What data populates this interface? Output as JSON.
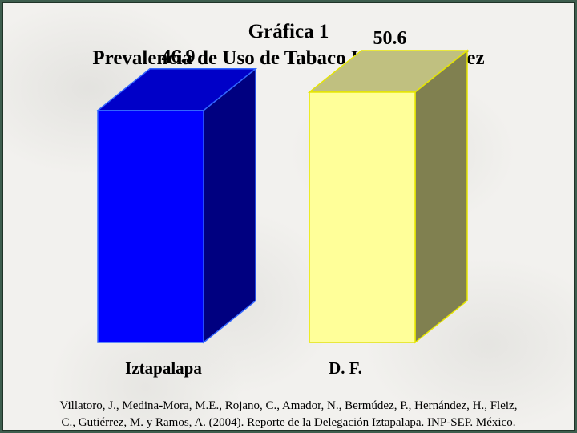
{
  "chart_data": {
    "type": "bar",
    "title": "Gráfica 1",
    "subtitle": "Prevalencia de Uso de Tabaco Uso Alguna Vez",
    "categories": [
      "Iztapalapa",
      "D. F."
    ],
    "values": [
      46.9,
      50.6
    ],
    "value_labels": [
      "46.9",
      "50.6"
    ],
    "style": "3d-box",
    "colors": {
      "Iztapalapa": {
        "front": "#0000ff",
        "top": "#0000c8",
        "side": "#000080",
        "edge": "#3366ff"
      },
      "D. F.": {
        "front": "#ffff99",
        "top": "#c0c080",
        "side": "#808050",
        "edge": "#e6e600"
      }
    },
    "ylim": [
      0,
      60
    ],
    "grid": false,
    "xlabel": "",
    "ylabel": ""
  },
  "source": {
    "line1": "Villatoro, J., Medina-Mora, M.E., Rojano, C., Amador, N., Bermúdez, P., Hernández, H., Fleiz,",
    "line2": "C., Gutiérrez, M. y Ramos, A. (2004). Reporte de la Delegación Iztapalapa. INP-SEP. México."
  },
  "colors": {
    "frame": "#3e5e4e",
    "background": "#f2f1ee"
  }
}
